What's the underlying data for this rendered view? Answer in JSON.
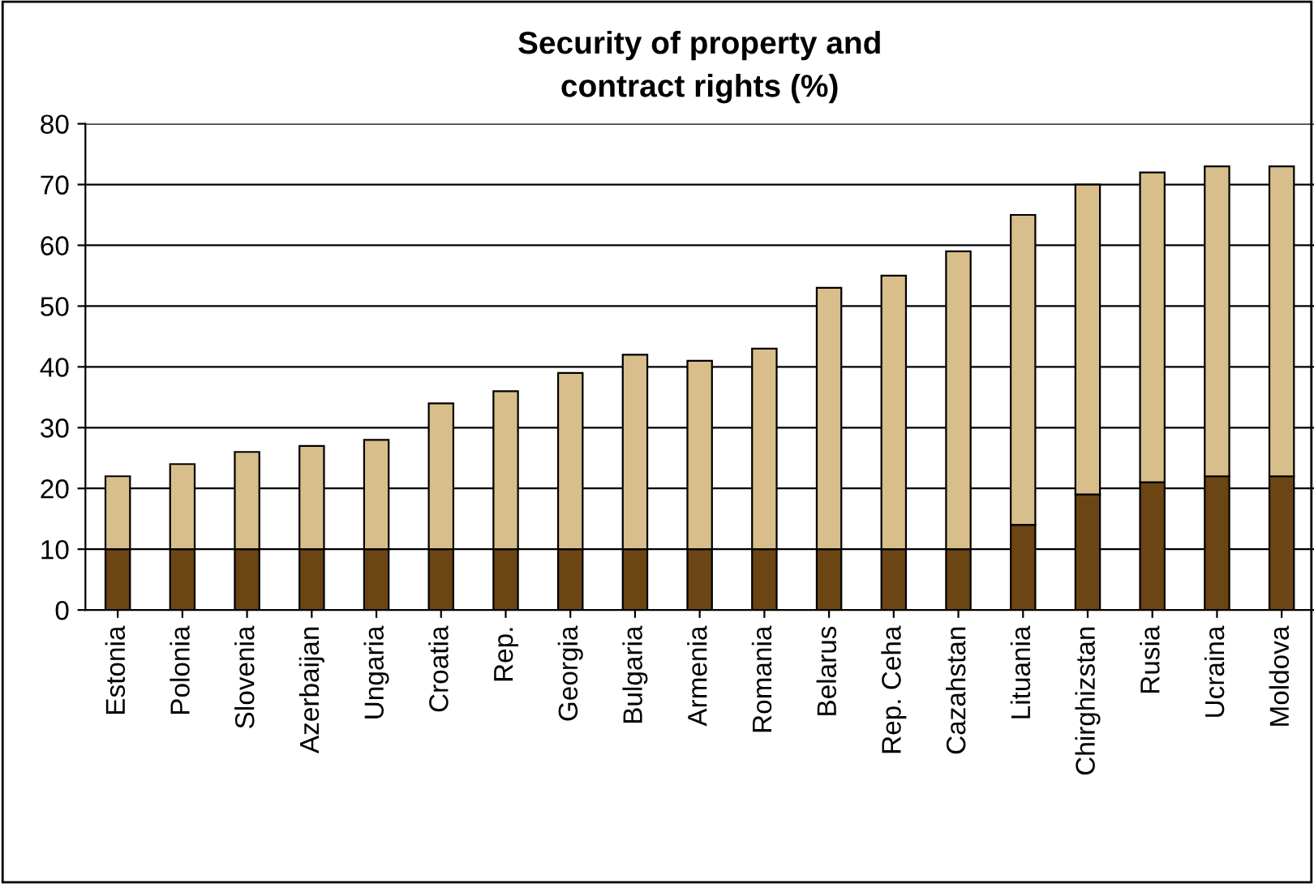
{
  "chart_data": {
    "type": "bar",
    "title": "Security of property and\ncontract rights (%)",
    "stacked": true,
    "categories": [
      "Estonia",
      "Polonia",
      "Slovenia",
      "Azerbaijan",
      "Ungaria",
      "Croatia",
      "Rep.",
      "Georgia",
      "Bulgaria",
      "Armenia",
      "Romania",
      "Belarus",
      "Rep. Ceha",
      "Cazahstan",
      "Lituania",
      "Chirghizstan",
      "Rusia",
      "Ucraina",
      "Moldova"
    ],
    "series": [
      {
        "color": "#6b4513",
        "values": [
          10,
          10,
          10,
          10,
          10,
          10,
          10,
          10,
          10,
          10,
          10,
          10,
          10,
          10,
          14,
          19,
          21,
          22,
          22
        ]
      },
      {
        "color": "#d8be8a",
        "values": [
          12,
          14,
          16,
          17,
          18,
          24,
          26,
          29,
          32,
          31,
          33,
          43,
          45,
          49,
          51,
          51,
          51,
          51,
          51
        ]
      }
    ],
    "ylim": [
      0,
      80
    ],
    "yticks": [
      0,
      10,
      20,
      30,
      40,
      50,
      60,
      70,
      80
    ],
    "grid": "y",
    "legend": false
  }
}
